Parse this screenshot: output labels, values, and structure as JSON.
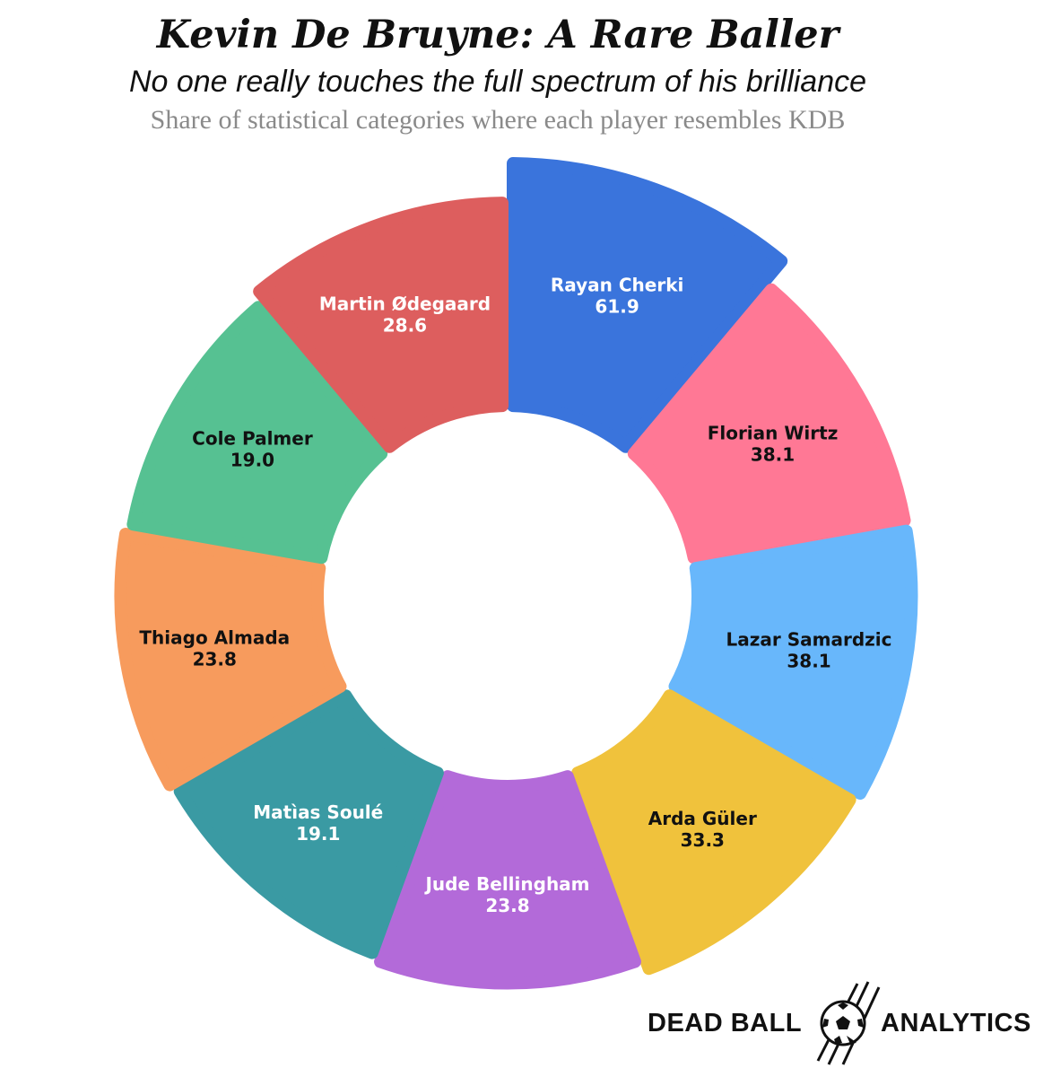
{
  "header": {
    "title": "Kevin De Bruyne: A Rare Baller",
    "subtitle": "No one really touches the full spectrum of his brilliance",
    "caption": "Share of statistical categories where each player resembles KDB"
  },
  "chart_data": {
    "type": "pie",
    "variant": "donut",
    "start": "top",
    "direction": "clockwise",
    "slices": [
      {
        "label": "Rayan Cherki",
        "value": 61.9,
        "color": "#3a74dc",
        "text_color": "#ffffff"
      },
      {
        "label": "Florian Wirtz",
        "value": 38.1,
        "color": "#ff7895",
        "text_color": "#111111"
      },
      {
        "label": "Lazar Samardzic",
        "value": 38.1,
        "color": "#68b7fb",
        "text_color": "#111111"
      },
      {
        "label": "Arda Güler",
        "value": 33.3,
        "color": "#f0c23c",
        "text_color": "#111111"
      },
      {
        "label": "Jude Bellingham",
        "value": 23.8,
        "color": "#b36ad9",
        "text_color": "#ffffff"
      },
      {
        "label": "Matìas Soulé",
        "value": 19.1,
        "color": "#3a9aa3",
        "text_color": "#ffffff"
      },
      {
        "label": "Thiago Almada",
        "value": 23.8,
        "color": "#f79b5d",
        "text_color": "#111111"
      },
      {
        "label": "Cole Palmer",
        "value": 19.0,
        "color": "#56c192",
        "text_color": "#111111"
      },
      {
        "label": "Martin Ødegaard",
        "value": 28.6,
        "color": "#dd5e5e",
        "text_color": "#ffffff"
      }
    ]
  },
  "branding": {
    "left_text": "DEAD BALL",
    "right_text": "ANALYTICS",
    "icon": "soccer-ball-icon"
  }
}
